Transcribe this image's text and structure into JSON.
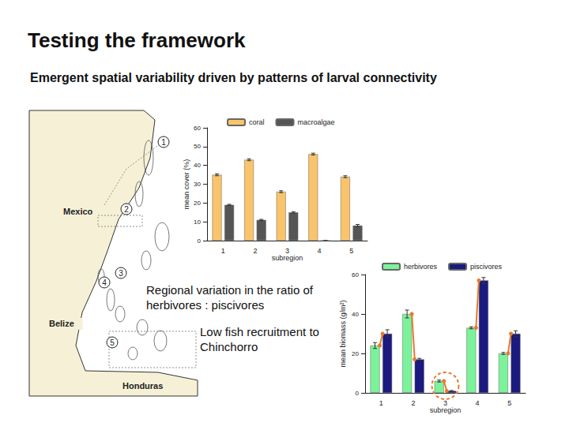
{
  "title": "Testing the framework",
  "subtitle": "Emergent spatial variability driven by patterns of larval connectivity",
  "map": {
    "labels": [
      "Mexico",
      "Belize",
      "Honduras"
    ],
    "markers": [
      "1",
      "2",
      "3",
      "4",
      "5"
    ]
  },
  "chart_data": [
    {
      "type": "bar",
      "x_label": "subregion",
      "y_label": "mean cover (%)",
      "categories": [
        "1",
        "2",
        "3",
        "4",
        "5"
      ],
      "series": [
        {
          "name": "coral",
          "color": "#f9c46b",
          "values": [
            35,
            43,
            26,
            46,
            34
          ],
          "errors": [
            0.5,
            0.5,
            0.5,
            0.5,
            0.5
          ]
        },
        {
          "name": "macroalgae",
          "color": "#555555",
          "values": [
            19,
            11,
            15,
            0,
            8
          ],
          "errors": [
            0.3,
            0.3,
            0.4,
            0,
            0.6
          ]
        }
      ],
      "ylim": [
        0,
        60
      ],
      "yticks": [
        0,
        10,
        20,
        30,
        40,
        50,
        60
      ],
      "grid": false,
      "legend": "top"
    },
    {
      "type": "bar",
      "x_label": "subregion",
      "y_label": "mean biomass (g/m²)",
      "categories": [
        "1",
        "2",
        "3",
        "4",
        "5"
      ],
      "series": [
        {
          "name": "herbivores",
          "color": "#7cf29a",
          "values": [
            24,
            40,
            6,
            33,
            20
          ],
          "errors": [
            1.5,
            2,
            0.5,
            0.5,
            0.5
          ]
        },
        {
          "name": "piscivores",
          "color": "#1a1a80",
          "values": [
            30,
            17,
            1,
            57,
            30
          ],
          "errors": [
            2,
            0.5,
            0.2,
            1.5,
            1.5
          ]
        }
      ],
      "ylim": [
        0,
        60
      ],
      "yticks": [
        0,
        20,
        40,
        60
      ],
      "grid": false,
      "legend": "top",
      "annotations": [
        {
          "text": "Regional variation in the ratio of herbivores : piscivores"
        },
        {
          "text": "Low fish recruitment to Chinchorro",
          "category": "3"
        }
      ]
    }
  ]
}
